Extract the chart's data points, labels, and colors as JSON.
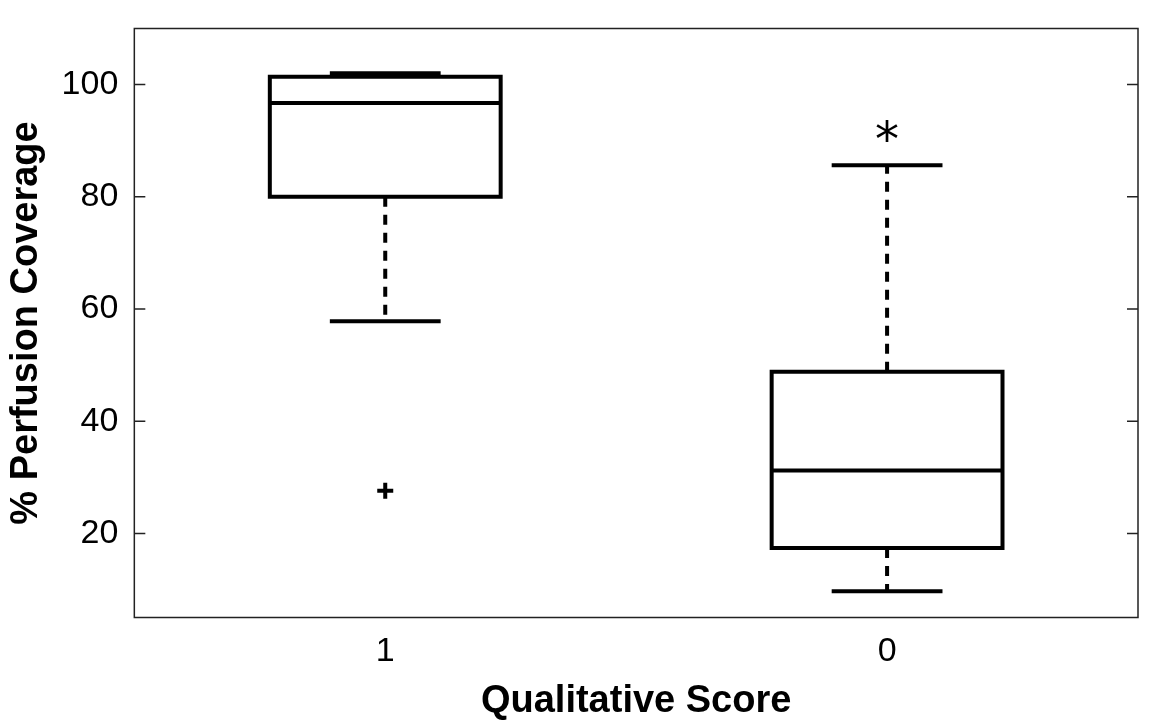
{
  "chart_data": {
    "type": "box",
    "xlabel": "Qualitative Score",
    "ylabel": "% Perfusion Coverage",
    "categories": [
      "1",
      "0"
    ],
    "color": "#000000",
    "marker": "cross",
    "line_style": "dashed",
    "grid": false,
    "legend": false,
    "ylim": [
      5,
      110
    ],
    "yticks": [
      20,
      40,
      60,
      80,
      100
    ],
    "boxes": [
      {
        "low": 57.8,
        "q1": 80,
        "median": 96.7,
        "q3": 101.4,
        "high": 102,
        "outliers": [
          27.6
        ]
      },
      {
        "low": 9.7,
        "q1": 17.4,
        "median": 31.2,
        "q3": 48.8,
        "high": 85.6
      }
    ],
    "annotations": [
      "*"
    ]
  }
}
